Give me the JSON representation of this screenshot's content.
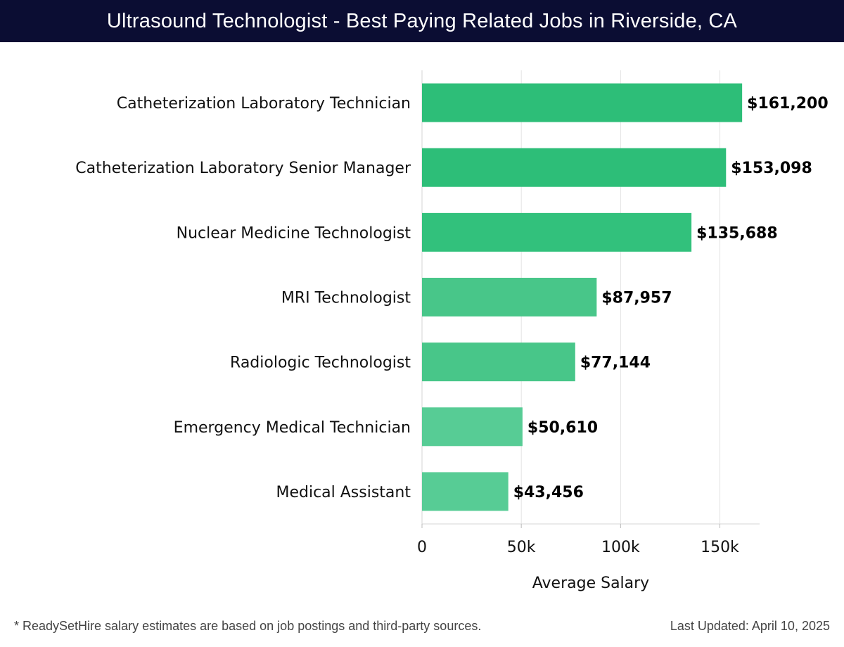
{
  "header": {
    "title": "Ultrasound Technologist - Best Paying Related Jobs in Riverside, CA"
  },
  "chart_data": {
    "type": "bar",
    "orientation": "horizontal",
    "categories": [
      "Catheterization Laboratory Technician",
      "Catheterization Laboratory Senior Manager",
      "Nuclear Medicine Technologist",
      "MRI Technologist",
      "Radiologic Technologist",
      "Emergency Medical Technician",
      "Medical Assistant"
    ],
    "values": [
      161200,
      153098,
      135688,
      87957,
      77144,
      50610,
      43456
    ],
    "value_labels": [
      "$161,200",
      "$153,098",
      "$135,688",
      "$87,957",
      "$77,144",
      "$50,610",
      "$43,456"
    ],
    "bar_colors": [
      "#2dbe78",
      "#2dbe78",
      "#32c17c",
      "#48c689",
      "#48c689",
      "#57cc95",
      "#57cc95"
    ],
    "xlabel": "Average Salary",
    "ylabel": "",
    "xlim": [
      0,
      170000
    ],
    "xticks": [
      0,
      50000,
      100000,
      150000
    ],
    "xtick_labels": [
      "0",
      "50k",
      "100k",
      "150k"
    ],
    "grid": true
  },
  "footer": {
    "note": "* ReadySetHire salary estimates are based on job postings and third-party sources.",
    "updated": "Last Updated: April 10, 2025"
  }
}
